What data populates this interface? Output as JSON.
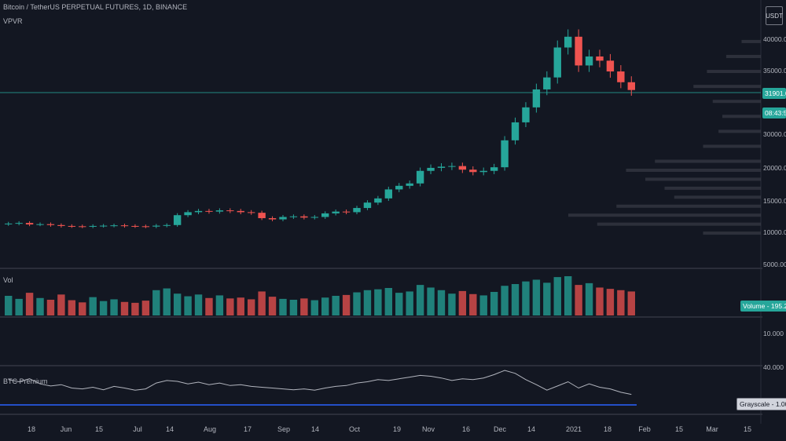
{
  "header": {
    "symbol": "Bitcoin / TetherUS PERPETUAL FUTURES, 1D, BINANCE",
    "indicator": "VPVR"
  },
  "currency": "USDT",
  "panes": {
    "volume_label": "Vol",
    "premium_label": "BTC Premium"
  },
  "price_axis": [
    "40000.00",
    "35000.00",
    "30000.00",
    "25000.00",
    "20000.00",
    "15000.00",
    "10000.00",
    "5000.00"
  ],
  "volume_axis": [
    "10.000",
    "40.000"
  ],
  "x_axis": [
    "18",
    "Jun",
    "15",
    "Jul",
    "14",
    "Aug",
    "17",
    "Sep",
    "14",
    "Oct",
    "19",
    "Nov",
    "16",
    "Dec",
    "14",
    "2021",
    "18",
    "Feb",
    "15",
    "Mar",
    "15"
  ],
  "tags": {
    "last_price": "31901.00",
    "countdown": "08:43:52",
    "volume": "Volume - 195.285K",
    "grayscale": "Grayscale - 1.00"
  },
  "colors": {
    "up": "#26a69a",
    "down": "#ef5350",
    "background": "#131722",
    "premium_line": "#b2b5be",
    "baseline": "#2962ff"
  },
  "chart_data": {
    "type": "candlestick",
    "series": [
      {
        "name": "Bitcoin / TetherUS PERPETUAL FUTURES",
        "values": [
          9600,
          9700,
          9450,
          9500,
          9350,
          9200,
          9150,
          9100,
          9200,
          9250,
          9300,
          9200,
          9150,
          9100,
          9250,
          9350,
          11000,
          11500,
          11700,
          11600,
          11800,
          11700,
          11500,
          11400,
          10500,
          10300,
          10700,
          10800,
          10600,
          10700,
          11300,
          11600,
          11500,
          12200,
          13100,
          13800,
          15300,
          15900,
          16300,
          18400,
          18900,
          19100,
          19200,
          18600,
          18200,
          18400,
          19000,
          23500,
          26500,
          29000,
          32000,
          34000,
          39000,
          40800,
          36000,
          37500,
          36800,
          35000,
          33200,
          31901
        ]
      }
    ],
    "volume": [
      45,
      38,
      52,
      40,
      36,
      48,
      35,
      30,
      42,
      33,
      37,
      31,
      29,
      34,
      58,
      62,
      50,
      44,
      48,
      40,
      46,
      39,
      41,
      37,
      55,
      43,
      38,
      36,
      39,
      35,
      41,
      45,
      47,
      53,
      58,
      60,
      63,
      52,
      55,
      70,
      64,
      58,
      50,
      56,
      49,
      46,
      54,
      68,
      72,
      78,
      82,
      75,
      88,
      90,
      70,
      74,
      64,
      61,
      58,
      55
    ],
    "premium": [
      60,
      55,
      62,
      50,
      45,
      48,
      40,
      38,
      42,
      36,
      44,
      40,
      35,
      38,
      52,
      58,
      56,
      50,
      54,
      48,
      52,
      46,
      48,
      44,
      42,
      40,
      38,
      36,
      38,
      35,
      40,
      44,
      46,
      52,
      55,
      60,
      58,
      62,
      66,
      70,
      68,
      64,
      58,
      62,
      60,
      64,
      72,
      82,
      75,
      60,
      48,
      35,
      45,
      55,
      40,
      50,
      42,
      38,
      30,
      25
    ],
    "grayscale_baseline": 1.0,
    "vpvr_profile": [
      {
        "price": 40000,
        "volume": 10
      },
      {
        "price": 37500,
        "volume": 18
      },
      {
        "price": 35000,
        "volume": 28
      },
      {
        "price": 32500,
        "volume": 35
      },
      {
        "price": 30000,
        "volume": 25
      },
      {
        "price": 27500,
        "volume": 20
      },
      {
        "price": 25000,
        "volume": 22
      },
      {
        "price": 22500,
        "volume": 30
      },
      {
        "price": 20000,
        "volume": 55
      },
      {
        "price": 18500,
        "volume": 70
      },
      {
        "price": 17000,
        "volume": 60
      },
      {
        "price": 15500,
        "volume": 50
      },
      {
        "price": 14000,
        "volume": 45
      },
      {
        "price": 12500,
        "volume": 75
      },
      {
        "price": 11000,
        "volume": 100
      },
      {
        "price": 9500,
        "volume": 85
      },
      {
        "price": 8000,
        "volume": 30
      }
    ],
    "ylim": [
      5000,
      43000
    ],
    "grid": false,
    "xlabel": "",
    "ylabel": ""
  }
}
